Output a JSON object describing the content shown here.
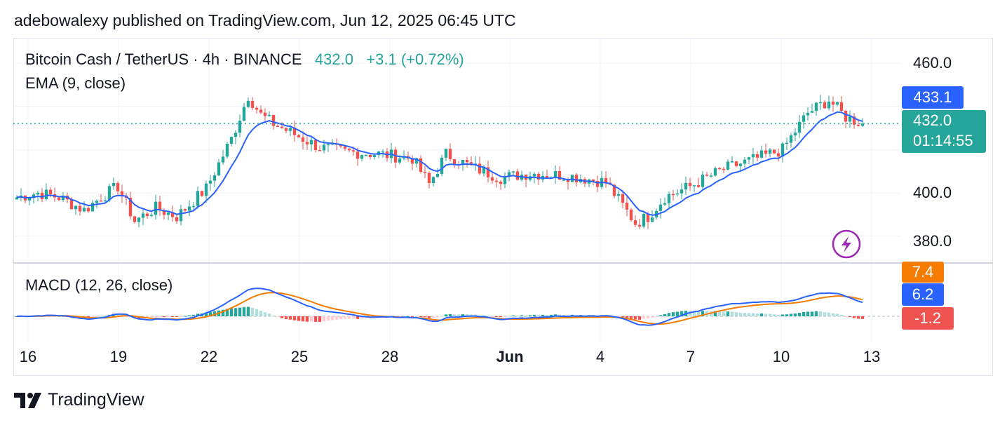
{
  "header": {
    "published_by": "adebowalexy published on TradingView.com, Jun 12, 2025 06:45 UTC"
  },
  "legend": {
    "symbol": "Bitcoin Cash / TetherUS · 4h · BINANCE",
    "last": "432.0",
    "change": "+3.1 (+0.72%)",
    "ema_label": "EMA (9, close)",
    "macd_label": "MACD (12, 26, close)"
  },
  "price_tags": {
    "ema": "433.1",
    "last": "432.0",
    "countdown": "01:14:55",
    "macd_signal": "7.4",
    "macd_line": "6.2",
    "macd_hist": "-1.2"
  },
  "price_axis": [
    "460.0",
    "400.0",
    "380.0"
  ],
  "time_axis": [
    "16",
    "19",
    "22",
    "25",
    "28",
    "Jun",
    "4",
    "7",
    "10",
    "13"
  ],
  "footer": {
    "brand": "TradingView"
  },
  "colors": {
    "up": "#26a69a",
    "down": "#ef5350",
    "ema": "#2962ff",
    "signal": "#f57c00",
    "hist_up": "#26a69a",
    "hist_down": "#ef5350"
  },
  "chart_data": [
    {
      "type": "candlestick",
      "title": "Bitcoin Cash / TetherUS · 4h · BINANCE",
      "ylim": [
        373,
        467
      ],
      "x_ticks": [
        "16",
        "19",
        "22",
        "25",
        "28",
        "Jun",
        "4",
        "7",
        "10",
        "13"
      ],
      "y_ticks": [
        460,
        400,
        380
      ],
      "series": [
        {
          "name": "EMA (9, close)",
          "last": 433.1
        },
        {
          "name": "Bitcoin Cash / TetherUS",
          "last": 432.0,
          "change": 3.1,
          "change_pct": 0.72
        }
      ],
      "anchors": [
        [
          0,
          398
        ],
        [
          5,
          400
        ],
        [
          10,
          398
        ],
        [
          16,
          392
        ],
        [
          20,
          398
        ],
        [
          24,
          403
        ],
        [
          28,
          387
        ],
        [
          33,
          393
        ],
        [
          38,
          389
        ],
        [
          45,
          402
        ],
        [
          51,
          425
        ],
        [
          55,
          445
        ],
        [
          58,
          436
        ],
        [
          61,
          432
        ],
        [
          66,
          427
        ],
        [
          72,
          421
        ],
        [
          78,
          419
        ],
        [
          86,
          418
        ],
        [
          94,
          416
        ],
        [
          98,
          404
        ],
        [
          102,
          418
        ],
        [
          108,
          412
        ],
        [
          115,
          407
        ],
        [
          122,
          409
        ],
        [
          131,
          408
        ],
        [
          140,
          405
        ],
        [
          147,
          386
        ],
        [
          150,
          389
        ],
        [
          154,
          398
        ],
        [
          160,
          403
        ],
        [
          168,
          411
        ],
        [
          176,
          416
        ],
        [
          182,
          420
        ],
        [
          188,
          437
        ],
        [
          193,
          443
        ],
        [
          197,
          435
        ],
        [
          201,
          432
        ]
      ]
    },
    {
      "type": "macd",
      "title": "MACD (12, 26, close)",
      "last": {
        "macd": 6.2,
        "signal": 7.4,
        "histogram": -1.2
      }
    }
  ]
}
